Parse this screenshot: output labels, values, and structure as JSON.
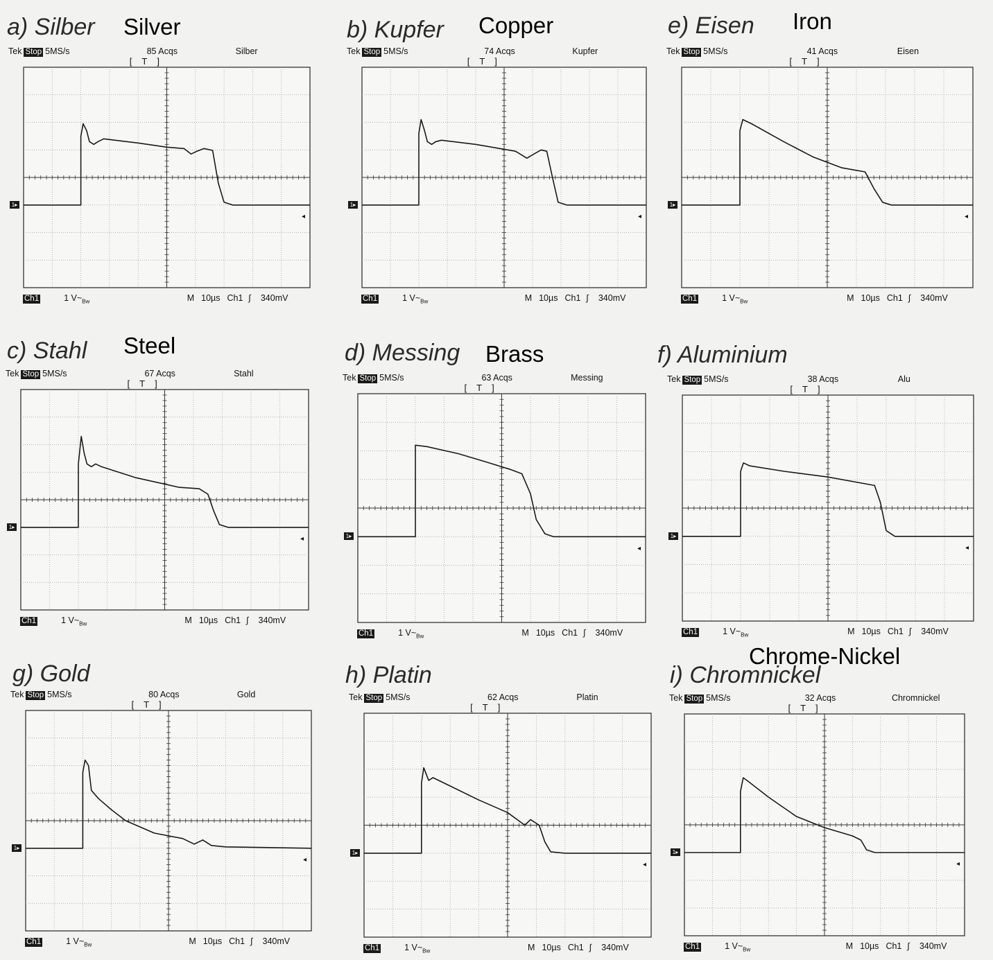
{
  "chart_data": [
    {
      "type": "line",
      "id": "a",
      "label": "a) Silber",
      "translation": "Silver",
      "acqs": "85 Acqs",
      "channel_label": "Silber",
      "points": [
        [
          0,
          0
        ],
        [
          2,
          0
        ],
        [
          2,
          2.5
        ],
        [
          2.08,
          2.95
        ],
        [
          2.2,
          2.7
        ],
        [
          2.3,
          2.3
        ],
        [
          2.45,
          2.2
        ],
        [
          2.6,
          2.3
        ],
        [
          2.8,
          2.4
        ],
        [
          4,
          2.25
        ],
        [
          5,
          2.1
        ],
        [
          5.6,
          2.05
        ],
        [
          5.85,
          1.85
        ],
        [
          6.05,
          1.95
        ],
        [
          6.3,
          2.05
        ],
        [
          6.6,
          1.98
        ],
        [
          6.8,
          0.8
        ],
        [
          7,
          0.1
        ],
        [
          7.3,
          0
        ],
        [
          10,
          0
        ]
      ]
    },
    {
      "type": "line",
      "id": "b",
      "label": "b) Kupfer",
      "translation": "Copper",
      "acqs": "74 Acqs",
      "channel_label": "Kupfer",
      "points": [
        [
          0,
          0
        ],
        [
          2,
          0
        ],
        [
          2,
          2.6
        ],
        [
          2.08,
          3.1
        ],
        [
          2.2,
          2.7
        ],
        [
          2.3,
          2.3
        ],
        [
          2.45,
          2.2
        ],
        [
          2.6,
          2.3
        ],
        [
          2.8,
          2.35
        ],
        [
          4,
          2.2
        ],
        [
          5.4,
          1.95
        ],
        [
          5.8,
          1.7
        ],
        [
          6.05,
          1.85
        ],
        [
          6.3,
          2.0
        ],
        [
          6.5,
          1.95
        ],
        [
          6.7,
          1.0
        ],
        [
          6.9,
          0.1
        ],
        [
          7.2,
          0
        ],
        [
          10,
          0
        ]
      ]
    },
    {
      "type": "line",
      "id": "e",
      "label": "e) Eisen",
      "translation": "Iron",
      "acqs": "41 Acqs",
      "channel_label": "Eisen",
      "points": [
        [
          0,
          0
        ],
        [
          2,
          0
        ],
        [
          2,
          2.7
        ],
        [
          2.1,
          3.1
        ],
        [
          2.4,
          2.95
        ],
        [
          3.5,
          2.3
        ],
        [
          4.5,
          1.75
        ],
        [
          5.5,
          1.35
        ],
        [
          6.3,
          1.2
        ],
        [
          6.6,
          0.6
        ],
        [
          6.9,
          0.1
        ],
        [
          7.2,
          0
        ],
        [
          10,
          0
        ]
      ]
    },
    {
      "type": "line",
      "id": "c",
      "label": "c) Stahl",
      "translation": "Steel",
      "acqs": "67 Acqs",
      "channel_label": "Stahl",
      "points": [
        [
          0,
          0
        ],
        [
          2,
          0
        ],
        [
          2,
          2.3
        ],
        [
          2.1,
          3.3
        ],
        [
          2.2,
          2.7
        ],
        [
          2.3,
          2.3
        ],
        [
          2.45,
          2.2
        ],
        [
          2.6,
          2.3
        ],
        [
          2.8,
          2.2
        ],
        [
          4,
          1.8
        ],
        [
          5.5,
          1.45
        ],
        [
          6.2,
          1.4
        ],
        [
          6.5,
          1.2
        ],
        [
          6.7,
          0.6
        ],
        [
          6.9,
          0.1
        ],
        [
          7.2,
          0
        ],
        [
          10,
          0
        ]
      ]
    },
    {
      "type": "line",
      "id": "d",
      "label": "d) Messing",
      "translation": "Brass",
      "acqs": "63 Acqs",
      "channel_label": "Messing",
      "points": [
        [
          0,
          0
        ],
        [
          2,
          0
        ],
        [
          2,
          3.2
        ],
        [
          2.4,
          3.15
        ],
        [
          3.5,
          2.9
        ],
        [
          4.5,
          2.6
        ],
        [
          5.3,
          2.35
        ],
        [
          5.7,
          2.2
        ],
        [
          6,
          1.5
        ],
        [
          6.2,
          0.6
        ],
        [
          6.5,
          0.1
        ],
        [
          6.8,
          0
        ],
        [
          10,
          0
        ]
      ]
    },
    {
      "type": "line",
      "id": "f",
      "label": "f) Aluminium",
      "translation": "",
      "acqs": "38 Acqs",
      "channel_label": "Alu",
      "points": [
        [
          0,
          0
        ],
        [
          2,
          0
        ],
        [
          2,
          2.3
        ],
        [
          2.1,
          2.6
        ],
        [
          2.3,
          2.5
        ],
        [
          3.5,
          2.3
        ],
        [
          5,
          2.1
        ],
        [
          6.6,
          1.8
        ],
        [
          6.8,
          1.2
        ],
        [
          7.0,
          0.2
        ],
        [
          7.3,
          0
        ],
        [
          10,
          0
        ]
      ]
    },
    {
      "type": "line",
      "id": "g",
      "label": "g) Gold",
      "translation": "",
      "acqs": "80 Acqs",
      "channel_label": "Gold",
      "points": [
        [
          0,
          0
        ],
        [
          2,
          0
        ],
        [
          2,
          2.75
        ],
        [
          2.08,
          3.2
        ],
        [
          2.2,
          3.0
        ],
        [
          2.3,
          2.1
        ],
        [
          2.55,
          1.8
        ],
        [
          3,
          1.4
        ],
        [
          3.5,
          1.0
        ],
        [
          4.5,
          0.55
        ],
        [
          5.5,
          0.35
        ],
        [
          5.9,
          0.15
        ],
        [
          6.2,
          0.3
        ],
        [
          6.5,
          0.1
        ],
        [
          7,
          0.05
        ],
        [
          10,
          0
        ]
      ]
    },
    {
      "type": "line",
      "id": "h",
      "label": "h) Platin",
      "translation": "",
      "acqs": "62 Acqs",
      "channel_label": "Platin",
      "points": [
        [
          0,
          0
        ],
        [
          2,
          0
        ],
        [
          2,
          2.5
        ],
        [
          2.08,
          3.05
        ],
        [
          2.25,
          2.6
        ],
        [
          2.4,
          2.7
        ],
        [
          3,
          2.4
        ],
        [
          4,
          1.9
        ],
        [
          5,
          1.45
        ],
        [
          5.6,
          1.0
        ],
        [
          5.8,
          1.2
        ],
        [
          6.1,
          1.0
        ],
        [
          6.3,
          0.4
        ],
        [
          6.5,
          0.05
        ],
        [
          7,
          0
        ],
        [
          10,
          0
        ]
      ]
    },
    {
      "type": "line",
      "id": "i",
      "label": "i) Chromnickel",
      "translation": "Chrome-Nickel",
      "acqs": "32 Acqs",
      "channel_label": "Chromnickel",
      "points": [
        [
          0,
          0
        ],
        [
          2,
          0
        ],
        [
          2,
          2.2
        ],
        [
          2.1,
          2.7
        ],
        [
          2.3,
          2.55
        ],
        [
          3,
          2.0
        ],
        [
          4,
          1.3
        ],
        [
          5,
          0.9
        ],
        [
          6,
          0.6
        ],
        [
          6.3,
          0.45
        ],
        [
          6.5,
          0.1
        ],
        [
          6.8,
          0
        ],
        [
          10,
          0
        ]
      ]
    }
  ],
  "scope": {
    "brand": "Tek",
    "stop": "Stop",
    "rate": "5MS/s",
    "trigger": "T",
    "ch1": "Ch1",
    "volts": "1 V~",
    "bw": "Bw",
    "timebase": "M",
    "time": "10µs",
    "trig_ch": "Ch1",
    "trig_level": "340mV"
  },
  "axes": {
    "x_divisions": 10,
    "y_divisions": 8,
    "xlim": [
      0,
      10
    ],
    "ylim": [
      -4,
      4
    ]
  }
}
